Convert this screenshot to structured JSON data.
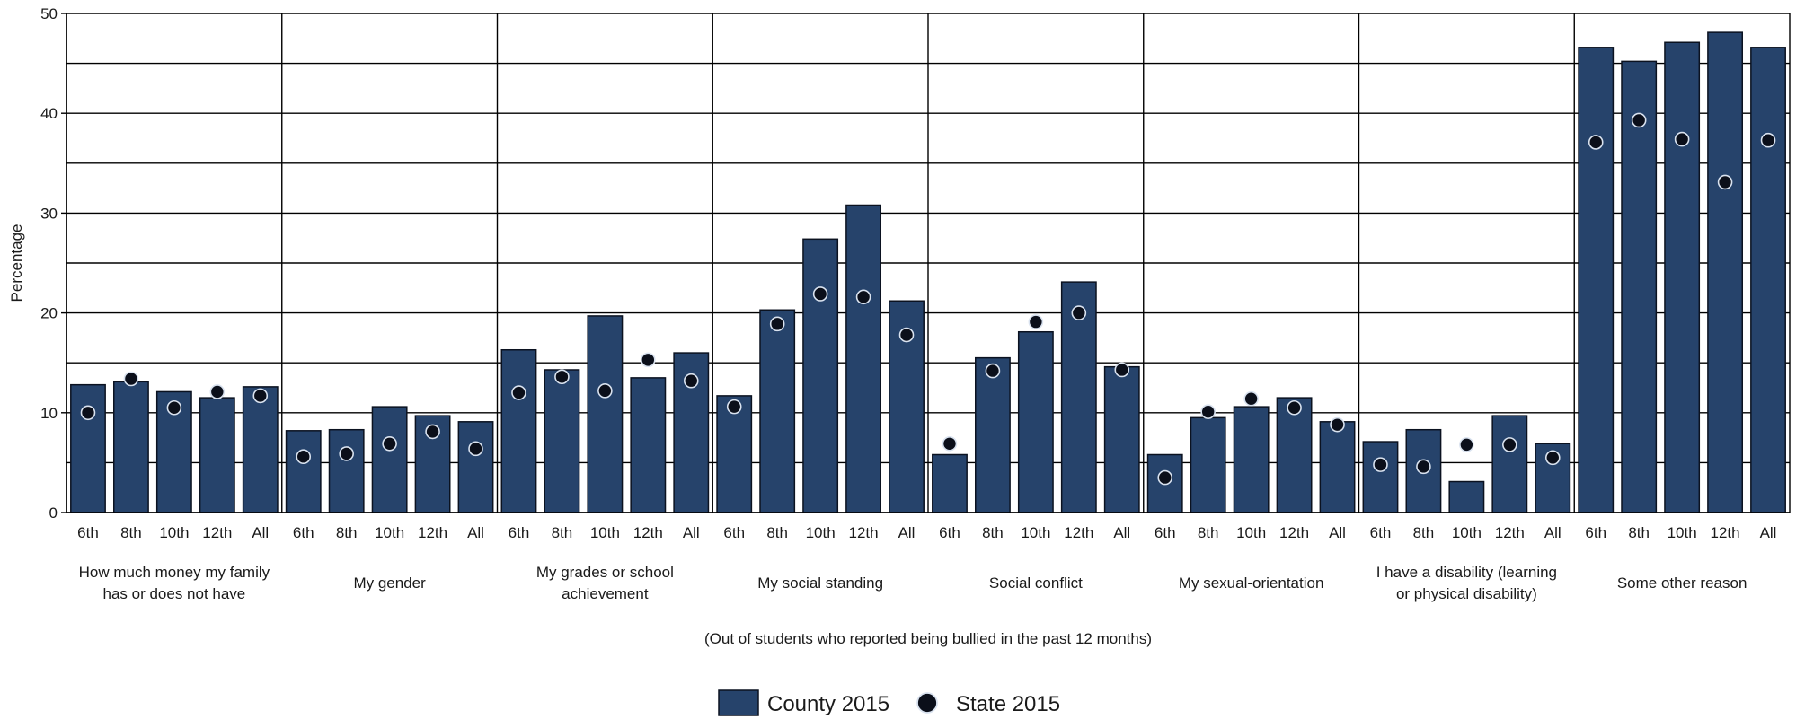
{
  "chart_data": {
    "type": "bar",
    "ylabel": "Percentage",
    "ylim": [
      0,
      50
    ],
    "yticks": [
      "0",
      "10",
      "20",
      "30",
      "40",
      "50"
    ],
    "grid": true,
    "note": "(Out of students who reported being bullied in the past 12 months)",
    "legend": {
      "placement": "bottom-center"
    },
    "colors": {
      "bar": "#26436b",
      "bar_edge": "#0b1220",
      "dot": "#0b0f1a",
      "dot_edge": "#d9e2ef",
      "grid": "#000000"
    },
    "grades": [
      "6th",
      "8th",
      "10th",
      "12th",
      "All"
    ],
    "groups": [
      {
        "label": [
          "How much money my family",
          "has or does not have"
        ],
        "county": [
          12.8,
          13.1,
          12.1,
          11.5,
          12.6
        ],
        "state": [
          10.0,
          13.4,
          10.5,
          12.1,
          11.7
        ]
      },
      {
        "label": [
          "My gender"
        ],
        "county": [
          8.2,
          8.3,
          10.6,
          9.7,
          9.1
        ],
        "state": [
          5.6,
          5.9,
          6.9,
          8.1,
          6.4
        ]
      },
      {
        "label": [
          "My grades or school",
          "achievement"
        ],
        "county": [
          16.3,
          14.3,
          19.7,
          13.5,
          16.0
        ],
        "state": [
          12.0,
          13.6,
          12.2,
          15.3,
          13.2
        ]
      },
      {
        "label": [
          "My social standing"
        ],
        "county": [
          11.7,
          20.3,
          27.4,
          30.8,
          21.2
        ],
        "state": [
          10.6,
          18.9,
          21.9,
          21.6,
          17.8
        ]
      },
      {
        "label": [
          "Social conflict"
        ],
        "county": [
          5.8,
          15.5,
          18.1,
          23.1,
          14.6
        ],
        "state": [
          6.9,
          14.2,
          19.1,
          20.0,
          14.3
        ]
      },
      {
        "label": [
          "My sexual-orientation"
        ],
        "county": [
          5.8,
          9.5,
          10.6,
          11.5,
          9.1
        ],
        "state": [
          3.5,
          10.1,
          11.4,
          10.5,
          8.8
        ]
      },
      {
        "label": [
          "I have a disability (learning",
          "or physical disability)"
        ],
        "county": [
          7.1,
          8.3,
          3.1,
          9.7,
          6.9
        ],
        "state": [
          4.8,
          4.6,
          6.8,
          6.8,
          5.5
        ]
      },
      {
        "label": [
          "Some other reason"
        ],
        "county": [
          46.6,
          45.2,
          47.1,
          48.1,
          46.6
        ],
        "state": [
          37.1,
          39.3,
          37.4,
          33.1,
          37.3
        ]
      }
    ],
    "series": [
      {
        "name": "County 2015",
        "kind": "bar"
      },
      {
        "name": "State 2015",
        "kind": "dot"
      }
    ]
  }
}
